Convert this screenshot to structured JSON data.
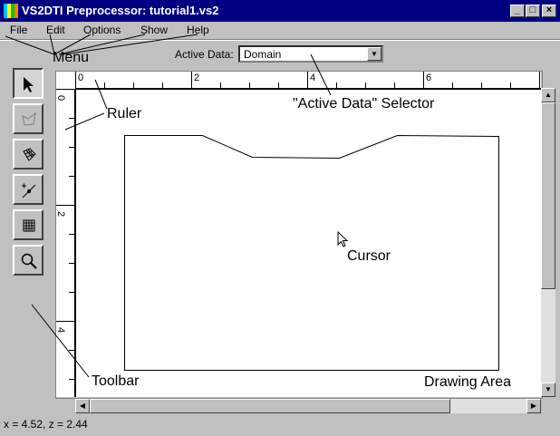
{
  "window": {
    "title": "VS2DTI Preprocessor: tutorial1.vs2"
  },
  "menu": [
    "File",
    "Edit",
    "Options",
    "Show",
    "Help"
  ],
  "active_data": {
    "label": "Active Data:",
    "value": "Domain"
  },
  "ruler": {
    "top_labels": [
      "0",
      "2",
      "4",
      "6"
    ],
    "left_labels": [
      "0",
      "2",
      "4"
    ]
  },
  "toolbar": {
    "tools": [
      {
        "name": "pointer-tool",
        "icon": "arrow-pointer-icon",
        "active": true
      },
      {
        "name": "polygon-tool",
        "icon": "polygon-icon",
        "active": false
      },
      {
        "name": "grid-shape-tool",
        "icon": "mesh-icon",
        "active": false
      },
      {
        "name": "point-line-tool",
        "icon": "point-line-icon",
        "active": false
      },
      {
        "name": "grid-tool",
        "icon": "grid-icon",
        "active": false
      },
      {
        "name": "zoom-tool",
        "icon": "magnifier-icon",
        "active": false
      }
    ]
  },
  "status": "x = 4.52, z = 2.44",
  "annotations": {
    "menu": "Menu",
    "ruler": "Ruler",
    "selector": "\"Active Data\" Selector",
    "cursor": "Cursor",
    "toolbar": "Toolbar",
    "drawing_area": "Drawing Area"
  }
}
